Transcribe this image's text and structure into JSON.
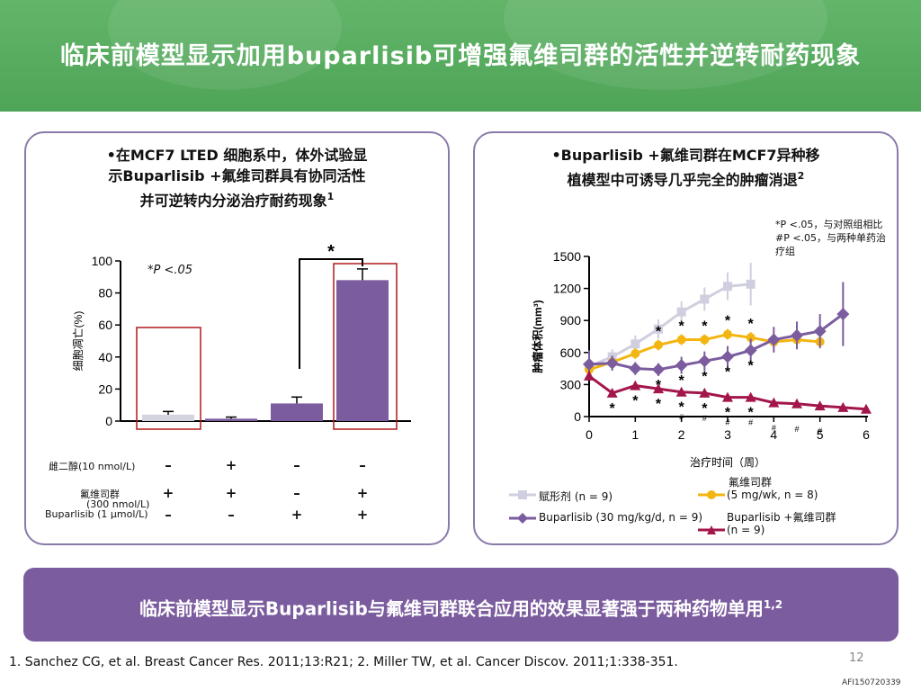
{
  "page": {
    "title": "临床前模型显示加用buparlisib可增强氟维司群的活性并逆转耐药现象",
    "page_number": "12",
    "code": "AFI150720339"
  },
  "left_panel": {
    "title_line1": "•在MCF7 LTED 细胞系中，体外试验显",
    "title_line2": "示Buparlisib +氟维司群具有协同活性",
    "title_line3": "并可逆转内分泌治疗耐药现象",
    "title_sup": "1",
    "pnote": "*P <.05",
    "sig_mark": "*",
    "row_labels": [
      "雌二醇(10 nmol/L)",
      "氟维司群",
      "(300 nmol/L)",
      "Buparlisib (1 μmol/L)"
    ],
    "signs": [
      [
        "–",
        "+",
        "–",
        "–"
      ],
      [
        "+",
        "+",
        "–",
        "+"
      ],
      [
        "–",
        "–",
        "+",
        "+"
      ]
    ]
  },
  "right_panel": {
    "title_line1": "•Buparlisib +氟维司群在MCF7异种移",
    "title_line2": "植模型中可诱导几乎完全的肿瘤消退",
    "title_sup": "2",
    "note_line1": "*P <.05，与对照组相比",
    "note_line2": "#P <.05，与两种单药治",
    "note_line3": "疗组",
    "legend": {
      "vehicle": "赋形剂 (n = 9)",
      "fulvestrant_line1": "氟维司群",
      "fulvestrant_line2": "(5 mg/wk,  n = 8)",
      "buparlisib": "Buparlisib (30 mg/kg/d, n = 9)",
      "combo_line1": "Buparlisib +氟维司群",
      "combo_line2": "(n = 9)"
    }
  },
  "banner": {
    "text": "临床前模型显示Buparlisib与氟维司群联合应用的效果显著强于两种药物单用",
    "sup": "1,2"
  },
  "footer": {
    "text": "1. Sanchez CG, et al. Breast Cancer Res. 2011;13:R21; 2. Miller TW, et al. Cancer Discov. 2011;1:338-351."
  },
  "chart_data": [
    {
      "type": "bar",
      "ylabel": "细胞凋亡(%)",
      "ylim": [
        0,
        100
      ],
      "yticks": [
        0,
        20,
        40,
        60,
        80,
        100
      ],
      "categories": [
        "雌二醇",
        "雌二醇 + 氟维司群",
        "Buparlisib",
        "氟维司群 + Buparlisib"
      ],
      "values": [
        4,
        1.5,
        11,
        88
      ],
      "errors": [
        2,
        1,
        4,
        7
      ],
      "colors": [
        "#d4d4e0",
        "#7b5c9e",
        "#7b5c9e",
        "#7b5c9e"
      ]
    },
    {
      "type": "line",
      "xlabel": "治疗时间（周）",
      "ylabel": "肿瘤体积(mm³)",
      "xlim": [
        0,
        6
      ],
      "ylim": [
        0,
        1500
      ],
      "xticks": [
        0,
        1,
        2,
        3,
        4,
        5,
        6
      ],
      "yticks": [
        0,
        300,
        600,
        900,
        1200,
        1500
      ],
      "series": [
        {
          "name": "赋形剂 (n = 9)",
          "color": "#cfcfdf",
          "marker": "square",
          "x": [
            0,
            0.5,
            1,
            1.5,
            2,
            2.5,
            3,
            3.5
          ],
          "y": [
            470,
            560,
            680,
            820,
            980,
            1100,
            1220,
            1240
          ],
          "err": [
            60,
            70,
            80,
            90,
            100,
            110,
            130,
            200
          ]
        },
        {
          "name": "氟维司群 (5 mg/wk,  n = 8)",
          "color": "#f3b510",
          "marker": "circle",
          "x": [
            0,
            0.5,
            1,
            1.5,
            2,
            2.5,
            3,
            3.5,
            4,
            4.5,
            5
          ],
          "y": [
            440,
            510,
            590,
            670,
            720,
            720,
            770,
            740,
            700,
            720,
            700
          ],
          "err": [
            40,
            40,
            50,
            50,
            50,
            50,
            50,
            50,
            50,
            40,
            40
          ]
        },
        {
          "name": "Buparlisib (30 mg/kg/d, n = 9)",
          "color": "#7b5c9e",
          "marker": "diamond",
          "x": [
            0,
            0.5,
            1,
            1.5,
            2,
            2.5,
            3,
            3.5,
            4,
            4.5,
            5,
            5.5
          ],
          "y": [
            490,
            500,
            450,
            440,
            480,
            520,
            560,
            620,
            720,
            760,
            800,
            960
          ],
          "err": [
            130,
            70,
            60,
            60,
            80,
            90,
            100,
            110,
            120,
            130,
            160,
            300
          ]
        },
        {
          "name": "Buparlisib +氟维司群 (n = 9)",
          "color": "#a3164b",
          "marker": "triangle",
          "x": [
            0,
            0.5,
            1,
            1.5,
            2,
            2.5,
            3,
            3.5,
            4,
            4.5,
            5,
            5.5,
            6
          ],
          "y": [
            380,
            220,
            290,
            260,
            230,
            220,
            180,
            180,
            130,
            120,
            100,
            85,
            70
          ],
          "err": [
            40,
            30,
            30,
            30,
            30,
            30,
            25,
            25,
            20,
            20,
            15,
            15,
            15
          ]
        }
      ],
      "annotations": {
        "star_above_fulvestrant_x": [
          1.5,
          2,
          2.5,
          3,
          3.5
        ],
        "star_below_buparlisib_x": [
          1.5,
          2,
          2.5,
          3,
          3.5
        ],
        "star_below_combo_x": [
          0.5,
          1,
          1.5,
          2,
          2.5,
          3,
          3.5
        ],
        "hash_below_combo_x": [
          2,
          2.5,
          3,
          3.5,
          4,
          4.5,
          5
        ]
      }
    }
  ]
}
